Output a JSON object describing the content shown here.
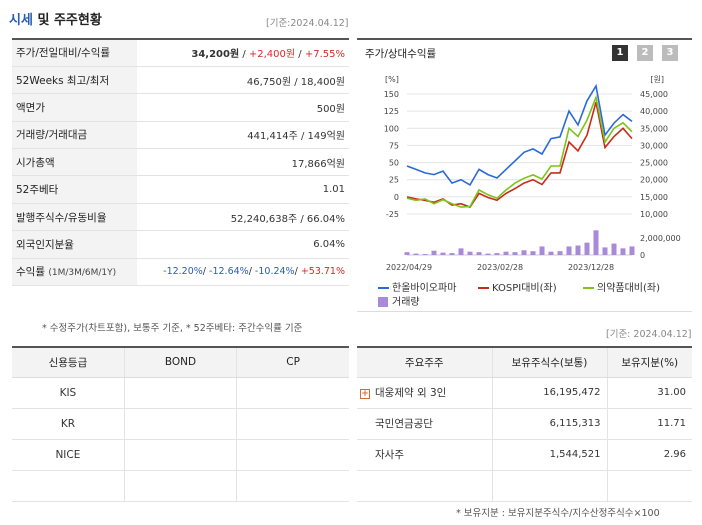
{
  "header": {
    "title_accent": "시세",
    "title_rest": "및 주주현황",
    "asof": "[기준:2024.04.12]"
  },
  "quote": {
    "rows": [
      {
        "label": "주가/전일대비/수익률",
        "v1": "34,200원",
        "sep1": " / ",
        "v2": "+2,400원",
        "sep2": " / ",
        "v3": "+7.55%"
      },
      {
        "label": "52Weeks 최고/최저",
        "value": "46,750원 / 18,400원"
      },
      {
        "label": "액면가",
        "value": "500원"
      },
      {
        "label": "거래량/거래대금",
        "value": "441,414주 / 149억원"
      },
      {
        "label": "시가총액",
        "value": "17,866억원"
      },
      {
        "label": "52주베타",
        "value": "1.01"
      },
      {
        "label": "발행주식수/유동비율",
        "value": "52,240,638주 / 66.04%"
      },
      {
        "label": "외국인지분율",
        "value": "6.04%"
      }
    ],
    "return_row": {
      "label": "수익률",
      "label_small": "(1M/3M/6M/1Y)",
      "r1": "-12.20%",
      "r2": "-12.64%",
      "r3": "-10.24%",
      "r4": "+53.71%"
    },
    "note": "* 수정주가(차트포함), 보통주 기준, * 52주베타: 주간수익률 기준"
  },
  "chart": {
    "title": "주가/상대수익률",
    "pages": [
      "1",
      "2",
      "3"
    ],
    "active_page": "1",
    "left_unit": "[%]",
    "right_unit": "[원]",
    "left_ticks": [
      "150",
      "125",
      "100",
      "75",
      "50",
      "25",
      "0",
      "-25"
    ],
    "right_ticks": [
      "45,000",
      "40,000",
      "35,000",
      "30,000",
      "25,000",
      "20,000",
      "15,000",
      "10,000"
    ],
    "vol_tick_top": "2,000,000",
    "vol_tick_bottom": "0",
    "x_labels": [
      "2022/04/29",
      "2023/02/28",
      "2023/12/28"
    ],
    "legend": {
      "s1": "한올바이오파마",
      "s2": "KOSPI대비(좌)",
      "s3": "의약품대비(좌)",
      "s4": "거래량"
    }
  },
  "chart_data": {
    "type": "line",
    "title": "주가/상대수익률",
    "ylabel_left": "[%]",
    "ylabel_right": "[원]",
    "ylim_left": [
      -25,
      150
    ],
    "ylim_right": [
      10000,
      45000
    ],
    "x_start": "2022/04/29",
    "x_end": "2024/04/12",
    "series": [
      {
        "name": "한올바이오파마",
        "color": "#2a6ad8",
        "axis": "right",
        "values": [
          24000,
          23000,
          22000,
          21500,
          22500,
          19000,
          20000,
          18500,
          23000,
          21500,
          20500,
          23000,
          25500,
          28000,
          29000,
          27500,
          32000,
          32500,
          40000,
          36000,
          43000,
          48000,
          33000,
          36500,
          39000,
          37000
        ]
      },
      {
        "name": "KOSPI대비(좌)",
        "color": "#cc2a1a",
        "axis": "left",
        "values": [
          0,
          -3,
          -5,
          -8,
          -3,
          -12,
          -10,
          -15,
          5,
          -1,
          -5,
          5,
          12,
          20,
          25,
          18,
          35,
          35,
          80,
          67,
          90,
          138,
          72,
          88,
          100,
          85
        ]
      },
      {
        "name": "의약품대비(좌)",
        "color": "#7ec21a",
        "axis": "left",
        "values": [
          -2,
          -5,
          -3,
          -10,
          -4,
          -10,
          -15,
          -14,
          10,
          3,
          -2,
          10,
          20,
          27,
          32,
          26,
          45,
          45,
          100,
          88,
          112,
          145,
          80,
          100,
          108,
          95
        ]
      },
      {
        "name": "거래량",
        "color": "#a98ad8",
        "axis": "volume",
        "values": [
          300000,
          150000,
          100000,
          450000,
          250000,
          200000,
          700000,
          350000,
          300000,
          150000,
          200000,
          350000,
          300000,
          500000,
          400000,
          900000,
          350000,
          400000,
          900000,
          1000000,
          1300000,
          2600000,
          800000,
          1200000,
          700000,
          900000
        ]
      }
    ],
    "ylim_volume": [
      0,
      2000000
    ]
  },
  "credit": {
    "headers": [
      "신용등급",
      "BOND",
      "CP"
    ],
    "rows": [
      [
        "KIS",
        "",
        ""
      ],
      [
        "KR",
        "",
        ""
      ],
      [
        "NICE",
        "",
        ""
      ],
      [
        "",
        "",
        ""
      ]
    ]
  },
  "holders": {
    "asof": "[기준: 2024.04.12]",
    "headers": [
      "주요주주",
      "보유주식수(보통)",
      "보유지분(%)"
    ],
    "rows": [
      [
        "대웅제약 외 3인",
        "16,195,472",
        "31.00"
      ],
      [
        "국민연금공단",
        "6,115,313",
        "11.71"
      ],
      [
        "자사주",
        "1,544,521",
        "2.96"
      ],
      [
        "",
        "",
        ""
      ]
    ],
    "note": "* 보유지분 : 보유지분주식수/지수산정주식수×100"
  }
}
